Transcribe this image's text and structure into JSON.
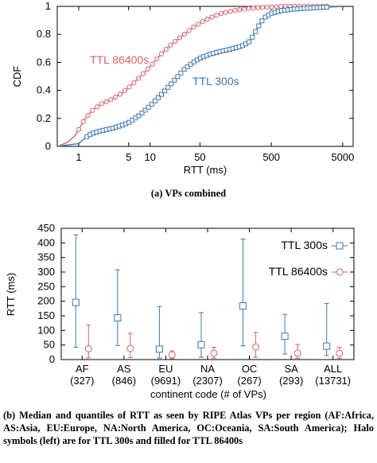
{
  "chart_data": [
    {
      "type": "line",
      "subcaption": "(a) VPs combined",
      "xlabel": "RTT (ms)",
      "ylabel": "CDF",
      "xscale": "log",
      "xlim": [
        0.5,
        7000
      ],
      "ylim": [
        0,
        1
      ],
      "xticks": [
        "1",
        "5",
        "10",
        "50",
        "500",
        "5000"
      ],
      "xtick_values": [
        1,
        5,
        10,
        50,
        500,
        5000
      ],
      "yticks": [
        "0",
        "0.2",
        "0.4",
        "0.6",
        "0.8",
        "1"
      ],
      "ytick_values": [
        0,
        0.2,
        0.4,
        0.6,
        0.8,
        1
      ],
      "grid": false,
      "series": [
        {
          "name": "TTL 86400s",
          "color": "#d9606a",
          "marker": "circle",
          "x": [
            0.5,
            0.7,
            0.9,
            1.0,
            1.2,
            1.5,
            2,
            3,
            4,
            5,
            7,
            10,
            15,
            20,
            30,
            40,
            50,
            70,
            100,
            150,
            200,
            300,
            500,
            700,
            1000,
            2000,
            5000
          ],
          "y": [
            0.0,
            0.03,
            0.08,
            0.12,
            0.19,
            0.25,
            0.3,
            0.34,
            0.38,
            0.42,
            0.49,
            0.57,
            0.67,
            0.73,
            0.8,
            0.85,
            0.88,
            0.92,
            0.95,
            0.97,
            0.98,
            0.99,
            0.995,
            1.0,
            1.0,
            1.0,
            1.0
          ]
        },
        {
          "name": "TTL 300s",
          "color": "#3a78b5",
          "marker": "square",
          "x": [
            0.5,
            1.0,
            1.3,
            1.5,
            2,
            3,
            4,
            5,
            7,
            10,
            15,
            20,
            30,
            40,
            50,
            70,
            100,
            150,
            200,
            250,
            300,
            350,
            400,
            500,
            700,
            1000,
            2000,
            5000
          ],
          "y": [
            0.0,
            0.02,
            0.07,
            0.09,
            0.11,
            0.13,
            0.15,
            0.17,
            0.22,
            0.29,
            0.38,
            0.45,
            0.55,
            0.6,
            0.63,
            0.66,
            0.68,
            0.7,
            0.72,
            0.75,
            0.82,
            0.88,
            0.92,
            0.95,
            0.97,
            0.98,
            0.99,
            1.0
          ]
        }
      ],
      "annotations": [
        "TTL 86400s",
        "TTL 300s"
      ]
    },
    {
      "type": "errorbar",
      "ylabel": "RTT (ms)",
      "xlabel": "continent code (# of VPs)",
      "ylim": [
        0,
        450
      ],
      "yticks": [
        "0",
        "50",
        "100",
        "150",
        "200",
        "250",
        "300",
        "350",
        "400",
        "450"
      ],
      "ytick_values": [
        0,
        50,
        100,
        150,
        200,
        250,
        300,
        350,
        400,
        450
      ],
      "categories": [
        "AF",
        "AS",
        "EU",
        "NA",
        "OC",
        "SA",
        "ALL"
      ],
      "category_counts": [
        "(327)",
        "(846)",
        "(9691)",
        "(2307)",
        "(267)",
        "(293)",
        "(13731)"
      ],
      "legend_position": "top-right",
      "series": [
        {
          "name": "TTL 300s",
          "color": "#3a78b5",
          "marker": "square",
          "median": [
            196,
            143,
            36,
            51,
            184,
            80,
            46
          ],
          "low": [
            42,
            48,
            5,
            8,
            47,
            19,
            14
          ],
          "high": [
            428,
            308,
            182,
            161,
            413,
            155,
            192
          ]
        },
        {
          "name": "TTL 86400s",
          "color": "#d9606a",
          "marker": "circle",
          "median": [
            37,
            38,
            16,
            22,
            43,
            22,
            21
          ],
          "low": [
            6,
            7,
            3,
            5,
            8,
            4,
            4
          ],
          "high": [
            118,
            90,
            30,
            42,
            93,
            52,
            42
          ]
        }
      ]
    }
  ],
  "caption": {
    "lead": "(b)",
    "text": "Median and quantiles of RTT as seen by RIPE Atlas VPs per region (AF:Africa, AS:Asia, EU:Europe, NA:North America, OC:Oceania, SA:South America); Halo symbols (left) are for TTL 300s and filled for TTL 86400s"
  }
}
